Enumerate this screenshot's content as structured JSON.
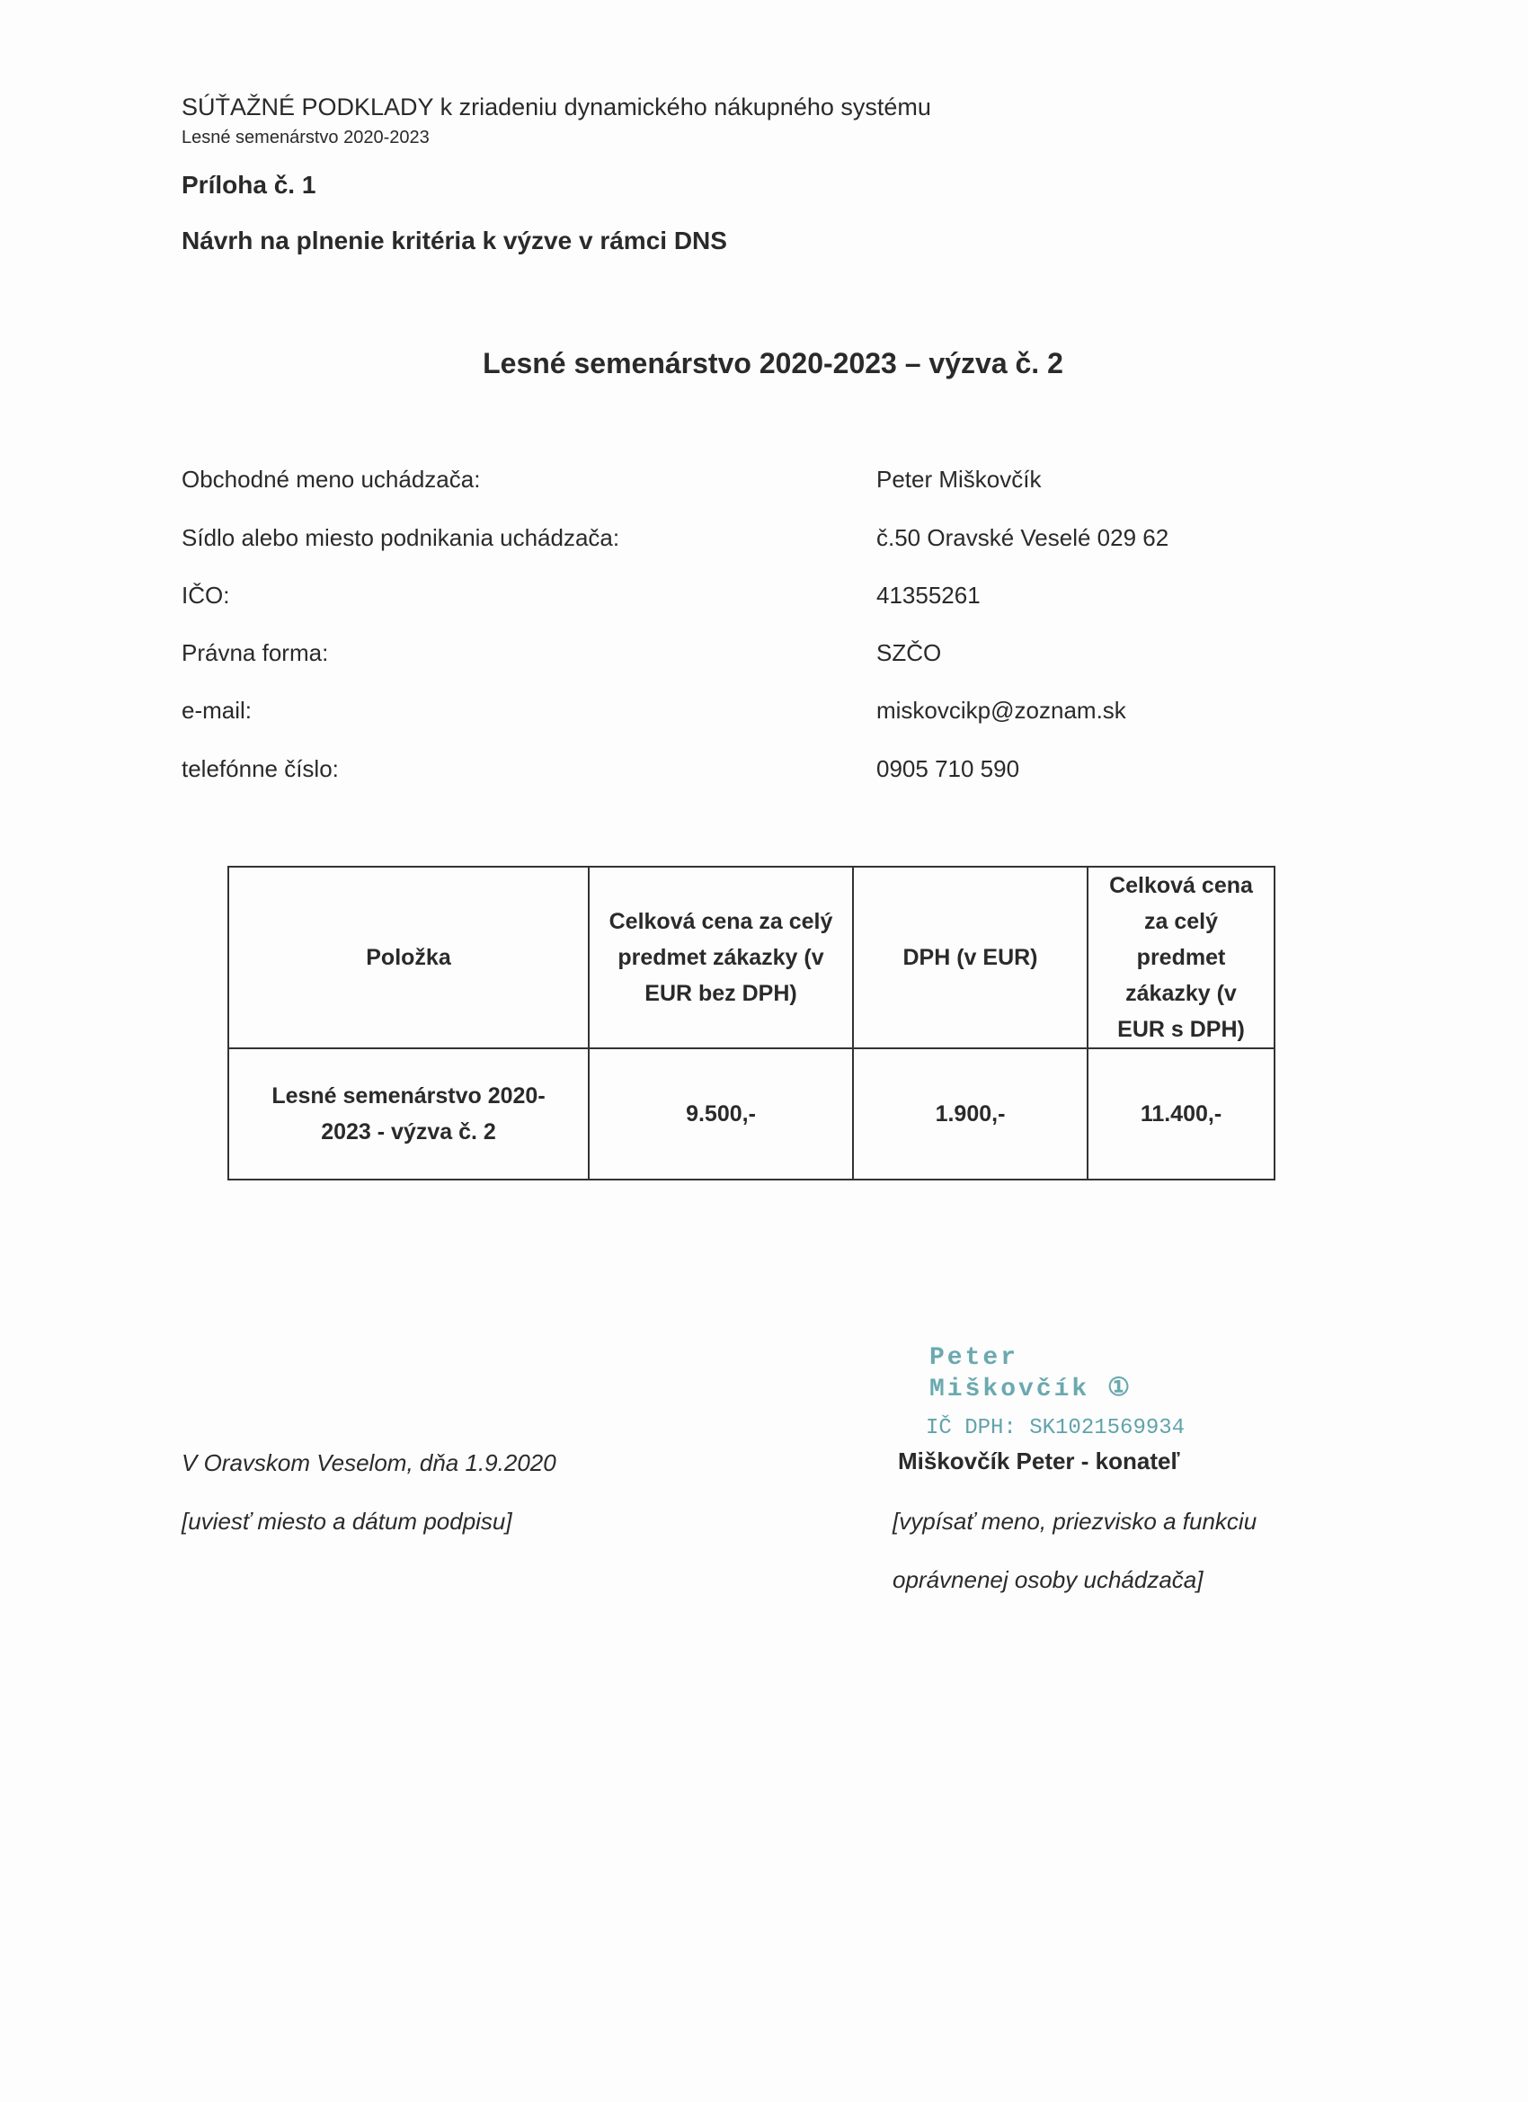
{
  "header": {
    "line1": "SÚŤAŽNÉ PODKLADY k zriadeniu dynamického nákupného systému",
    "line2": "Lesné semenárstvo 2020-2023"
  },
  "annex": "Príloha č. 1",
  "subtitle": "Návrh na plnenie kritéria k výzve v rámci DNS",
  "title": "Lesné semenárstvo 2020-2023 – výzva č. 2",
  "fields": [
    {
      "label": "Obchodné meno uchádzača:",
      "value": "Peter Miškovčík"
    },
    {
      "label": "Sídlo alebo miesto podnikania uchádzača:",
      "value": "č.50  Oravské Veselé 029 62"
    },
    {
      "label": "IČO:",
      "value": "41355261"
    },
    {
      "label": "Právna forma:",
      "value": "SZČO"
    },
    {
      "label": "e-mail:",
      "value": "miskovcikp@zoznam.sk"
    },
    {
      "label": "telefónne číslo:",
      "value": "0905 710 590"
    }
  ],
  "table": {
    "headers": [
      "Položka",
      "Celková cena za celý predmet zákazky (v EUR bez DPH)",
      "DPH (v EUR)",
      "Celková cena za celý predmet zákazky (v EUR s DPH)"
    ],
    "rows": [
      [
        "Lesné semenárstvo 2020-2023 - výzva č. 2",
        "9.500,-",
        "1.900,-",
        "11.400,-"
      ]
    ]
  },
  "footer": {
    "place_date": "V Oravskom Veselom, dňa 1.9.2020",
    "place_date_hint": "[uviesť miesto a dátum podpisu]",
    "stamp_line1": "Peter Miškovčík ①",
    "stamp_line2": "IČ DPH: SK1021569934",
    "signatory": "Miškovčík Peter - konateľ",
    "signatory_hint1": "[vypísať meno, priezvisko a funkciu",
    "signatory_hint2": "oprávnenej osoby uchádzača]"
  }
}
